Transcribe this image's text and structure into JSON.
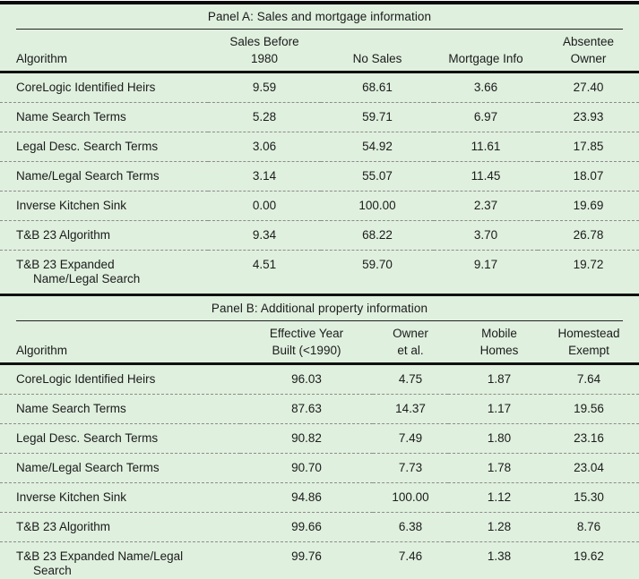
{
  "table": {
    "panels": [
      {
        "id": "panel-a",
        "title": "Panel A: Sales and mortgage information",
        "col_headers": [
          [
            "Algorithm"
          ],
          [
            "Sales Before",
            "1980"
          ],
          [
            "No Sales"
          ],
          [
            "Mortgage Info"
          ],
          [
            "Absentee",
            "Owner"
          ]
        ],
        "rows": [
          {
            "label": "CoreLogic Identified Heirs",
            "values": [
              "9.59",
              "68.61",
              "3.66",
              "27.40"
            ]
          },
          {
            "label": "Name Search Terms",
            "values": [
              "5.28",
              "59.71",
              "6.97",
              "23.93"
            ]
          },
          {
            "label": "Legal Desc. Search Terms",
            "values": [
              "3.06",
              "54.92",
              "11.61",
              "17.85"
            ]
          },
          {
            "label": "Name/Legal Search Terms",
            "values": [
              "3.14",
              "55.07",
              "11.45",
              "18.07"
            ]
          },
          {
            "label": "Inverse Kitchen Sink",
            "values": [
              "0.00",
              "100.00",
              "2.37",
              "19.69"
            ]
          },
          {
            "label": "T&B 23 Algorithm",
            "values": [
              "9.34",
              "68.22",
              "3.70",
              "26.78"
            ]
          },
          {
            "label": "T&B 23 Expanded",
            "label2": "Name/Legal Search",
            "values": [
              "4.51",
              "59.70",
              "9.17",
              "19.72"
            ]
          }
        ]
      },
      {
        "id": "panel-b",
        "title": "Panel B: Additional property information",
        "col_headers": [
          [
            "Algorithm"
          ],
          [
            "Effective Year",
            "Built (<1990)"
          ],
          [
            "Owner",
            "et al."
          ],
          [
            "Mobile",
            "Homes"
          ],
          [
            "Homestead",
            "Exempt"
          ]
        ],
        "rows": [
          {
            "label": "CoreLogic Identified Heirs",
            "values": [
              "96.03",
              "4.75",
              "1.87",
              "7.64"
            ]
          },
          {
            "label": "Name Search Terms",
            "values": [
              "87.63",
              "14.37",
              "1.17",
              "19.56"
            ]
          },
          {
            "label": "Legal Desc. Search Terms",
            "values": [
              "90.82",
              "7.49",
              "1.80",
              "23.16"
            ]
          },
          {
            "label": "Name/Legal Search Terms",
            "values": [
              "90.70",
              "7.73",
              "1.78",
              "23.04"
            ]
          },
          {
            "label": "Inverse Kitchen Sink",
            "values": [
              "94.86",
              "100.00",
              "1.12",
              "15.30"
            ]
          },
          {
            "label": "T&B 23 Algorithm",
            "values": [
              "99.66",
              "6.38",
              "1.28",
              "8.76"
            ]
          },
          {
            "label": "T&B 23 Expanded Name/Legal",
            "label2": "Search",
            "values": [
              "99.76",
              "7.46",
              "1.38",
              "19.62"
            ]
          }
        ]
      }
    ],
    "colors": {
      "background": "#dff0de",
      "text": "#1b1b1b",
      "rule": "#111111",
      "dashed_separator": "#8c8c8c"
    }
  }
}
